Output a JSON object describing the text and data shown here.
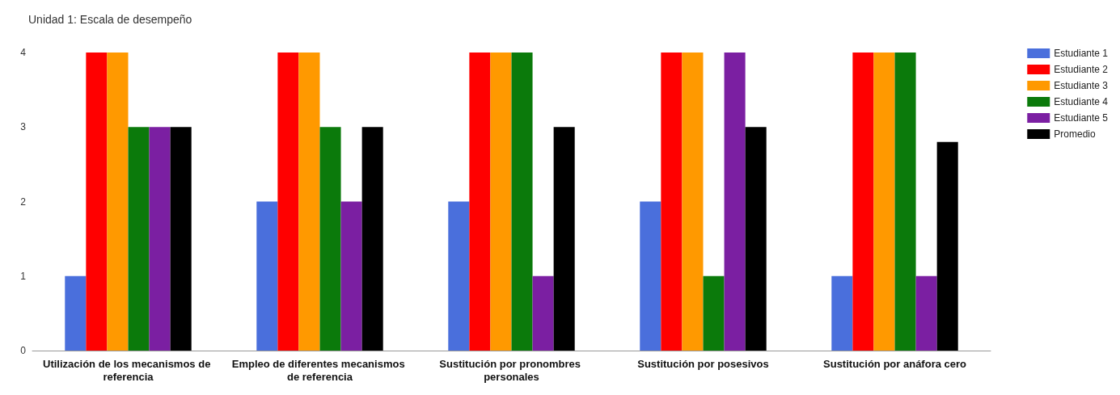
{
  "chart_data": {
    "type": "bar",
    "title": "Unidad 1: Escala de desempeño",
    "categories": [
      "Utilización de los mecanismos de referencia",
      "Empleo de diferentes mecanismos de referencia",
      "Sustitución por pronombres personales",
      "Sustitución por posesivos",
      "Sustitución por anáfora cero"
    ],
    "series": [
      {
        "name": "Estudiante 1",
        "color": "#4a6fdc",
        "values": [
          1,
          2,
          2,
          2,
          1
        ]
      },
      {
        "name": "Estudiante 2",
        "color": "#ff0000",
        "values": [
          4,
          4,
          4,
          4,
          4
        ]
      },
      {
        "name": "Estudiante 3",
        "color": "#ff9900",
        "values": [
          4,
          4,
          4,
          4,
          4
        ]
      },
      {
        "name": "Estudiante 4",
        "color": "#0b7a0b",
        "values": [
          3,
          3,
          4,
          1,
          4
        ]
      },
      {
        "name": "Estudiante 5",
        "color": "#7b1fa2",
        "values": [
          3,
          2,
          1,
          4,
          1
        ]
      },
      {
        "name": "Promedio",
        "color": "#000000",
        "values": [
          3,
          3,
          3,
          3,
          2.8
        ]
      }
    ],
    "ylim": [
      0,
      4
    ],
    "yticks": [
      0,
      1,
      2,
      3,
      4
    ],
    "grid": false,
    "legend": "right"
  }
}
